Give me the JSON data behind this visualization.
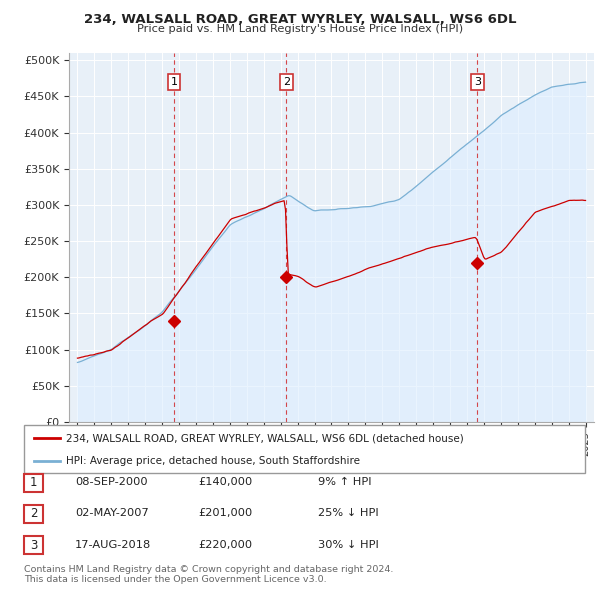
{
  "title": "234, WALSALL ROAD, GREAT WYRLEY, WALSALL, WS6 6DL",
  "subtitle": "Price paid vs. HM Land Registry's House Price Index (HPI)",
  "legend_line1": "234, WALSALL ROAD, GREAT WYRLEY, WALSALL, WS6 6DL (detached house)",
  "legend_line2": "HPI: Average price, detached house, South Staffordshire",
  "red_color": "#cc0000",
  "blue_color": "#7ab0d4",
  "blue_fill": "#ddeeff",
  "transactions": [
    {
      "num": 1,
      "date": "08-SEP-2000",
      "price": 140000,
      "pct": "9%",
      "dir": "↑",
      "x": 2000.69
    },
    {
      "num": 2,
      "date": "02-MAY-2007",
      "price": 201000,
      "pct": "25%",
      "dir": "↓",
      "x": 2007.33
    },
    {
      "num": 3,
      "date": "17-AUG-2018",
      "price": 220000,
      "pct": "30%",
      "dir": "↓",
      "x": 2018.62
    }
  ],
  "copyright_text": "Contains HM Land Registry data © Crown copyright and database right 2024.\nThis data is licensed under the Open Government Licence v3.0.",
  "ylim": [
    0,
    510000
  ],
  "yticks": [
    0,
    50000,
    100000,
    150000,
    200000,
    250000,
    300000,
    350000,
    400000,
    450000,
    500000
  ],
  "xlim": [
    1994.5,
    2025.5
  ],
  "chart_bg": "#e8f0f8"
}
